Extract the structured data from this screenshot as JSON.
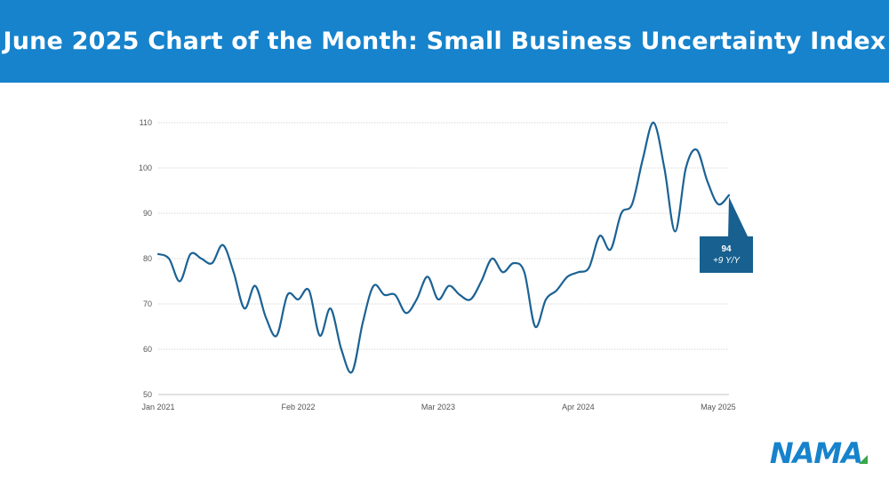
{
  "header": {
    "title": "June 2025 Chart of the Month: Small Business Uncertainty Index"
  },
  "logo": {
    "text": "NAMA"
  },
  "colors": {
    "banner": "#1683cc",
    "line": "#1b6294",
    "callout": "#17608f",
    "grid": "#c8c8c8",
    "logo_accent": "#3aa64a"
  },
  "chart_data": {
    "type": "line",
    "title": "",
    "xlabel": "",
    "ylabel": "",
    "ylim": [
      50,
      110
    ],
    "yticks": [
      50,
      60,
      70,
      80,
      90,
      100,
      110
    ],
    "xtick_labels": [
      {
        "label": "Jan 2021",
        "index": 0
      },
      {
        "label": "Feb 2022",
        "index": 13
      },
      {
        "label": "Mar 2023",
        "index": 26
      },
      {
        "label": "Apr 2024",
        "index": 39
      },
      {
        "label": "May 2025",
        "index": 52
      }
    ],
    "grid": "horizontal dotted",
    "series": [
      {
        "start": "2021-01",
        "frequency": "monthly",
        "values": [
          81,
          80,
          75,
          81,
          80,
          79,
          83,
          77,
          69,
          74,
          67,
          63,
          72,
          71,
          73,
          63,
          69,
          60,
          55,
          66,
          74,
          72,
          72,
          68,
          71,
          76,
          71,
          74,
          72,
          71,
          75,
          80,
          77,
          79,
          77,
          65,
          71,
          73,
          76,
          77,
          78,
          85,
          82,
          90,
          92,
          102,
          110,
          100,
          86,
          100,
          104,
          97,
          92,
          94
        ]
      }
    ],
    "callout": {
      "value": "94",
      "change": "+9 Y/Y"
    }
  }
}
